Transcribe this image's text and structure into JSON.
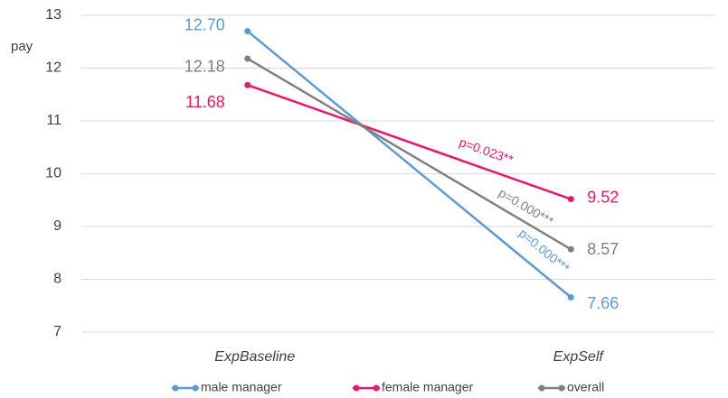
{
  "chart_data": {
    "type": "line",
    "y_label": "pay",
    "categories": [
      "ExpBaseline",
      "ExpSelf"
    ],
    "series": [
      {
        "name": "male manager",
        "color": "#5b9bd5",
        "values": [
          12.7,
          7.66
        ],
        "value_labels": [
          "12.70",
          "7.66"
        ],
        "annotation": "p=0.000***"
      },
      {
        "name": "female manager",
        "color": "#e8186d",
        "values": [
          11.68,
          9.52
        ],
        "value_labels": [
          "11.68",
          "9.52"
        ],
        "annotation": "p=0.023**"
      },
      {
        "name": "overall",
        "color": "#808080",
        "values": [
          12.18,
          8.57
        ],
        "value_labels": [
          "12.18",
          "8.57"
        ],
        "annotation": "p=0.000***"
      }
    ],
    "ylim": [
      7,
      13
    ],
    "yticks": [
      7,
      8,
      9,
      10,
      11,
      12,
      13
    ],
    "grid": true,
    "legend": "bottom"
  }
}
